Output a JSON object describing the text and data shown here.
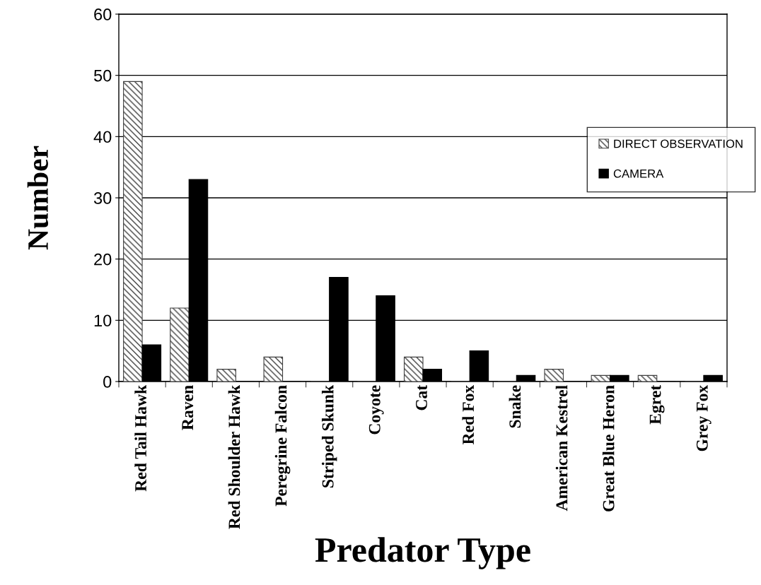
{
  "chart_data": {
    "type": "bar",
    "xlabel": "Predator Type",
    "ylabel": "Number",
    "categories": [
      "Red Tail Hawk",
      "Raven",
      "Red Shoulder Hawk",
      "Peregrine Falcon",
      "Striped Skunk",
      "Coyote",
      "Cat",
      "Red Fox",
      "Snake",
      "American Kestrel",
      "Great Blue Heron",
      "Egret",
      "Grey Fox"
    ],
    "series": [
      {
        "name": "DIRECT OBSERVATION",
        "color": "#404040",
        "values": [
          49,
          12,
          2,
          4,
          0,
          0,
          4,
          0,
          0,
          2,
          1,
          1,
          0
        ]
      },
      {
        "name": "CAMERA",
        "color": "#000000",
        "values": [
          6,
          33,
          0,
          0,
          17,
          14,
          2,
          5,
          1,
          0,
          1,
          0,
          1
        ]
      }
    ],
    "ylim": [
      0,
      60
    ],
    "yticks": [
      0,
      10,
      20,
      30,
      40,
      50,
      60
    ],
    "grid": "y",
    "legend": "right"
  }
}
